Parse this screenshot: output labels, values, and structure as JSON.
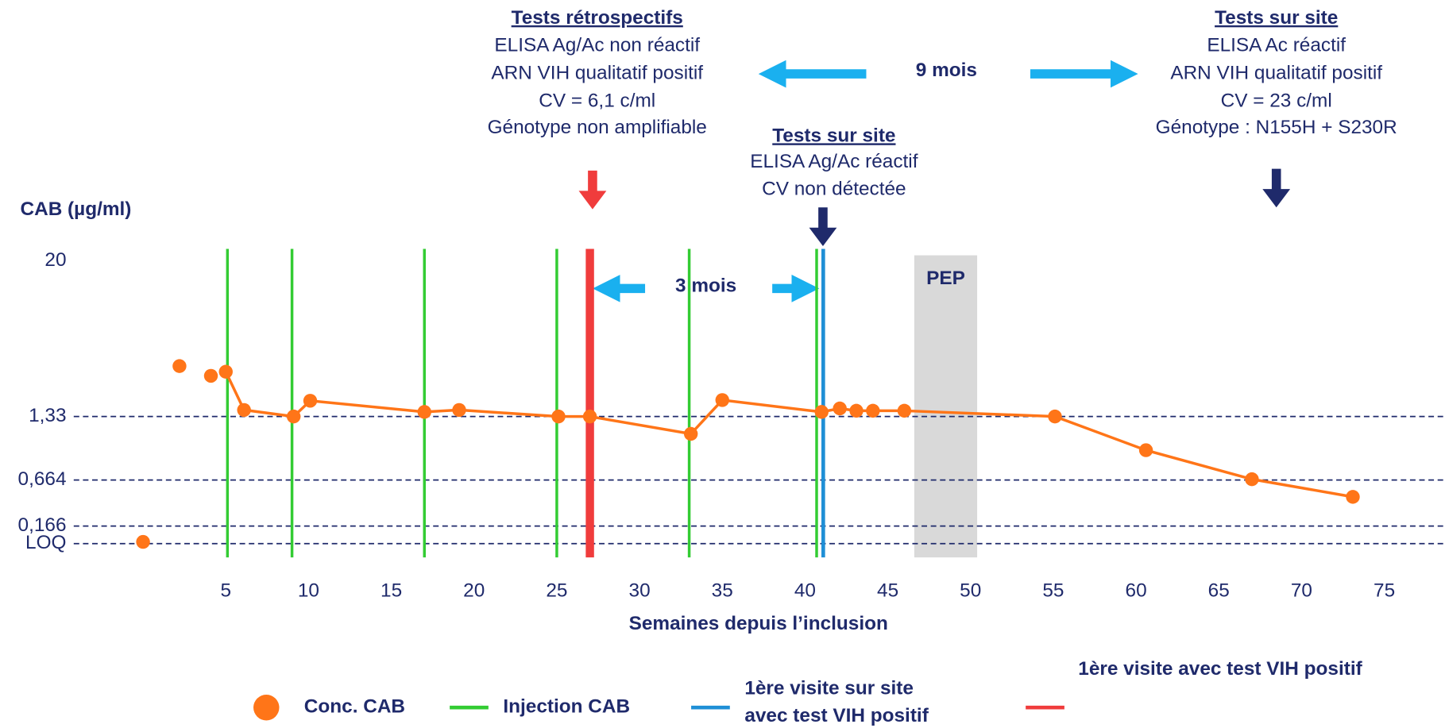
{
  "chart_data": {
    "type": "line",
    "y_label": "CAB (µg/ml)",
    "x_label": "Semaines depuis l’inclusion",
    "xlim": [
      -4,
      78
    ],
    "xticks": [
      5,
      10,
      15,
      20,
      25,
      30,
      35,
      40,
      45,
      50,
      55,
      60,
      65,
      70,
      75
    ],
    "ylim": [
      0.025,
      20
    ],
    "yticks": [
      20,
      {
        "value": 1.33,
        "label": "1,33"
      },
      {
        "value": 0.664,
        "label": "0,664"
      },
      {
        "value": 0.166,
        "label": "0,166"
      },
      {
        "value": 0.025,
        "label": "LOQ"
      }
    ],
    "grid": true,
    "grid_color": "#1f2a6b",
    "series": [
      {
        "name": "Conc. CAB",
        "color": "#ff7518",
        "x": [
          0,
          null,
          2.2,
          null,
          4.1,
          null,
          5,
          6.1,
          9.1,
          10.1,
          17,
          19.1,
          25.1,
          27,
          33.1,
          35,
          41,
          42.1,
          43.1,
          44.1,
          46,
          55.1,
          60.6,
          67,
          73.1
        ],
        "values": [
          0.03,
          null,
          3.2,
          null,
          2.7,
          null,
          2.9,
          1.49,
          1.33,
          1.75,
          1.44,
          1.49,
          1.33,
          1.33,
          1.1,
          1.77,
          1.44,
          1.53,
          1.47,
          1.47,
          1.47,
          1.33,
          0.92,
          0.67,
          0.4
        ]
      }
    ],
    "injections": {
      "name": "Injection CAB",
      "color": "#33cc33",
      "x": [
        5.1,
        9,
        17,
        25,
        33,
        40.7
      ]
    },
    "first_site_visit": {
      "name": [
        "1ère visite sur site",
        "avec test VIH positif"
      ],
      "color": "#1f8fd6",
      "x": 41.1
    },
    "first_positive": {
      "name": "1ère visite avec test VIH positif",
      "color": "#f03c3c",
      "x": 27
    },
    "pep": {
      "label": "PEP",
      "start": 46.6,
      "end": 50.4,
      "color": "#d9d9d9"
    },
    "annotations": [
      {
        "title": "Tests rétrospectifs",
        "lines": [
          {
            "text": "ELISA Ag/Ac non réactif",
            "color": "#1f2a6b"
          },
          {
            "text": "ARN VIH qualitatif positif",
            "color": "#d01c1c"
          },
          {
            "text": "CV = 6,1 c/ml",
            "color": "#d01c1c"
          },
          {
            "text": "Génotype non amplifiable",
            "color": "#1f2a6b"
          }
        ]
      },
      {
        "title": "Tests sur site",
        "lines": [
          {
            "text": "ELISA Ag/Ac réactif",
            "color": "#d01c1c"
          },
          {
            "text": "CV non détectée",
            "color": "#1f2a6b"
          }
        ]
      },
      {
        "title": "Tests sur site",
        "lines": [
          {
            "text": "ELISA Ac réactif",
            "color": "#d01c1c"
          },
          {
            "text": "ARN VIH qualitatif positif",
            "color": "#d01c1c"
          },
          {
            "text": "CV = 23 c/ml",
            "color": "#d01c1c"
          },
          {
            "text": "Génotype : N155H + S230R",
            "color": "#1f2a6b"
          }
        ]
      }
    ],
    "intervals": [
      "9 mois",
      "3 mois"
    ]
  }
}
